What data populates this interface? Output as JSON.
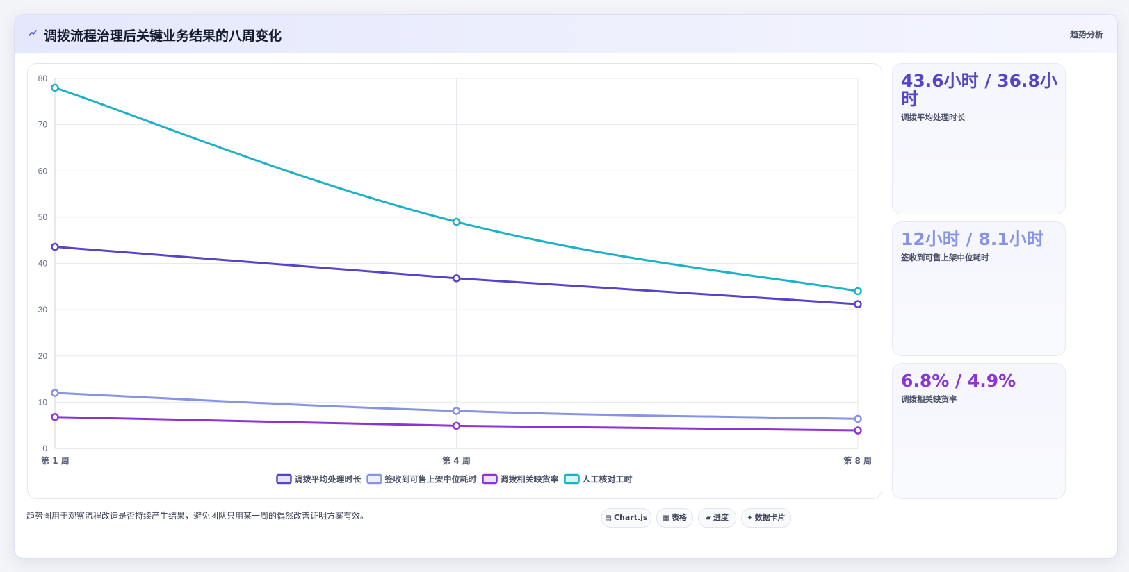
{
  "header": {
    "icon": "trend-icon",
    "title": "调拨流程治理后关键业务结果的八周变化",
    "tag": "趋势分析"
  },
  "stats": [
    {
      "value": "43.6小时 / 36.8小时",
      "label": "调拨平均处理时长",
      "color": "#5544c8"
    },
    {
      "value": "12小时 / 8.1小时",
      "label": "签收到可售上架中位耗时",
      "color": "#8793e3"
    },
    {
      "value": "6.8% / 4.9%",
      "label": "调拨相关缺货率",
      "color": "#8b35d6"
    }
  ],
  "footer": {
    "note": "趋势图用于观察流程改造是否持续产生结果，避免团队只用某一周的偶然改善证明方案有效。",
    "chips": [
      {
        "label": "Chart.js",
        "icon": "chart-icon"
      },
      {
        "label": "表格",
        "icon": "table-icon"
      },
      {
        "label": "进度",
        "icon": "progress-icon"
      },
      {
        "label": "数据卡片",
        "icon": "sparkle-icon"
      }
    ]
  },
  "chart_data": {
    "type": "line",
    "categories": [
      "第 1 周",
      "第 4 周",
      "第 8 周"
    ],
    "ylim": [
      0,
      80
    ],
    "yticks": [
      0,
      10,
      20,
      30,
      40,
      50,
      60,
      70,
      80
    ],
    "grid": true,
    "legend_position": "bottom",
    "series": [
      {
        "name": "调拨平均处理时长",
        "values": [
          43.6,
          36.8,
          31.2
        ],
        "color": "#5544c8"
      },
      {
        "name": "签收到可售上架中位耗时",
        "values": [
          12,
          8.1,
          6.4
        ],
        "color": "#8793e3"
      },
      {
        "name": "调拨相关缺货率",
        "values": [
          6.8,
          4.9,
          3.9
        ],
        "color": "#8b35d6"
      },
      {
        "name": "人工核对工时",
        "values": [
          78,
          49,
          34
        ],
        "color": "#1cb1c6"
      }
    ]
  }
}
